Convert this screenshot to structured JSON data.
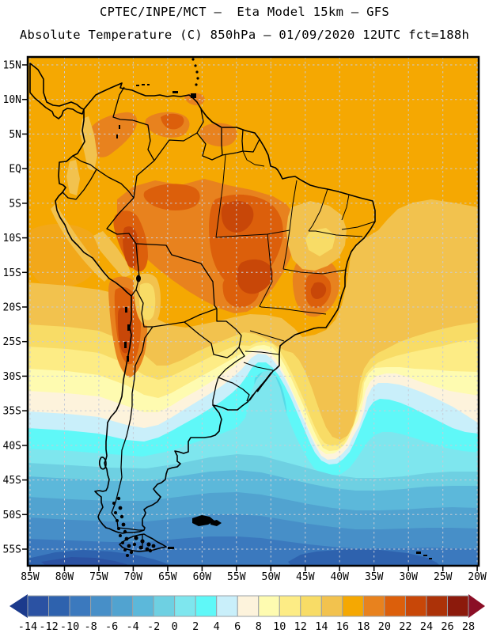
{
  "header": {
    "title_line1": "CPTEC/INPE/MCT —  Eta Model 15km — GFS",
    "title_line2": "Absolute Temperature (C) 850hPa — 01/09/2020 12UTC fct=188h"
  },
  "map": {
    "lat_labels": [
      "15N",
      "10N",
      "5N",
      "EQ",
      "5S",
      "10S",
      "15S",
      "20S",
      "25S",
      "30S",
      "35S",
      "40S",
      "45S",
      "50S",
      "55S"
    ],
    "lon_labels": [
      "85W",
      "80W",
      "75W",
      "70W",
      "65W",
      "60W",
      "55W",
      "50W",
      "45W",
      "40W",
      "35W",
      "30W",
      "25W",
      "20W"
    ]
  },
  "colorbar": {
    "tick_labels": [
      "-14",
      "-12",
      "-10",
      "-8",
      "-6",
      "-4",
      "-2",
      "0",
      "2",
      "4",
      "6",
      "8",
      "10",
      "12",
      "14",
      "16",
      "18",
      "20",
      "22",
      "24",
      "26",
      "28"
    ],
    "cell_colors": [
      "#2B52A3",
      "#2E62AE",
      "#3B79BE",
      "#478FC8",
      "#51A3D0",
      "#5CB8DA",
      "#6ED0E2",
      "#7EE6EE",
      "#5FF8F8",
      "#C9EFFA",
      "#FDF3DC",
      "#FEFBB0",
      "#FDEC85",
      "#F8DC66",
      "#F2C24E",
      "#F5A802",
      "#E8821E",
      "#DC5F0B",
      "#C84708",
      "#AC3208",
      "#8C1A0C"
    ],
    "left_arrow_color": "#1B3A8C",
    "right_arrow_color": "#8B0E26",
    "cell_border_color": "#9aa0a6"
  }
}
